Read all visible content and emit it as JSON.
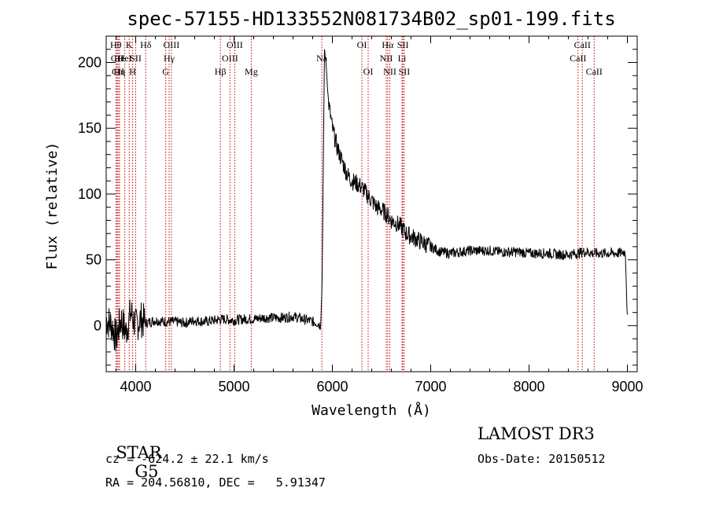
{
  "chart_data": {
    "type": "line",
    "title": "spec-57155-HD133552N081734B02_sp01-199.fits",
    "xlabel": "Wavelength (Å)",
    "ylabel": "Flux (relative)",
    "xlim": [
      3700,
      9100
    ],
    "ylim": [
      -35,
      220
    ],
    "x_ticks": [
      4000,
      5000,
      6000,
      7000,
      8000,
      9000
    ],
    "y_ticks": [
      0,
      50,
      100,
      150,
      200
    ],
    "line_color": "#000000",
    "marker_color": "#cc0000",
    "grid": false,
    "series": [
      {
        "x": [
          3700,
          3760,
          3800,
          3850,
          3900,
          3950,
          4000,
          4050,
          4100,
          4200,
          4300,
          4400,
          4500,
          4600,
          4700,
          4800,
          4900,
          5000,
          5100,
          5200,
          5300,
          5400,
          5500,
          5600,
          5700,
          5800,
          5850,
          5880,
          5895,
          5905,
          5920,
          5940,
          5960,
          5980,
          6000,
          6050,
          6100,
          6150,
          6200,
          6250,
          6300,
          6350,
          6400,
          6450,
          6500,
          6550,
          6600,
          6650,
          6700,
          6750,
          6800,
          6850,
          6900,
          6950,
          7000,
          7050,
          7100,
          7200,
          7300,
          7400,
          7500,
          7600,
          7700,
          7800,
          7900,
          8000,
          8100,
          8200,
          8300,
          8400,
          8500,
          8550,
          8600,
          8650,
          8700,
          8800,
          8900,
          8980,
          9000
        ],
        "y": [
          5,
          0,
          -10,
          5,
          -5,
          10,
          0,
          5,
          2,
          4,
          3,
          3,
          2,
          4,
          3,
          4,
          5,
          4,
          5,
          5,
          6,
          6,
          6,
          7,
          5,
          3,
          2,
          0,
          30,
          100,
          210,
          195,
          170,
          160,
          150,
          135,
          125,
          115,
          110,
          108,
          105,
          100,
          95,
          90,
          88,
          85,
          80,
          78,
          75,
          70,
          68,
          66,
          64,
          62,
          60,
          58,
          56,
          55,
          56,
          57,
          57,
          57,
          56,
          56,
          56,
          55,
          55,
          55,
          54,
          54,
          55,
          56,
          56,
          55,
          55,
          55,
          55,
          56,
          5
        ]
      }
    ],
    "line_markers": [
      {
        "name": "Hθ",
        "x": 3798,
        "row": 0
      },
      {
        "name": "CII",
        "x": 3810,
        "row": 1
      },
      {
        "name": "CII",
        "x": 3820,
        "row": 2
      },
      {
        "name": "He",
        "x": 3835,
        "row": 1
      },
      {
        "name": "Hη",
        "x": 3835,
        "row": 2
      },
      {
        "name": "K",
        "x": 3934,
        "row": 0
      },
      {
        "name": "H",
        "x": 3969,
        "row": 2
      },
      {
        "name": "HeI",
        "x": 3889,
        "row": 1
      },
      {
        "name": "SII",
        "x": 4000,
        "row": 1
      },
      {
        "name": "Hδ",
        "x": 4102,
        "row": 0
      },
      {
        "name": "OIII",
        "x": 4363,
        "row": 0
      },
      {
        "name": "Hγ",
        "x": 4340,
        "row": 1
      },
      {
        "name": "G",
        "x": 4305,
        "row": 2
      },
      {
        "name": "Hβ",
        "x": 4861,
        "row": 2
      },
      {
        "name": "OIII",
        "x": 5007,
        "row": 0
      },
      {
        "name": "OIII",
        "x": 4959,
        "row": 1
      },
      {
        "name": "Mg",
        "x": 5175,
        "row": 2
      },
      {
        "name": "Na",
        "x": 5893,
        "row": 1
      },
      {
        "name": "OI",
        "x": 6300,
        "row": 0
      },
      {
        "name": "OI",
        "x": 6364,
        "row": 2
      },
      {
        "name": "Hα",
        "x": 6563,
        "row": 0
      },
      {
        "name": "NII",
        "x": 6548,
        "row": 1
      },
      {
        "name": "NII",
        "x": 6584,
        "row": 2
      },
      {
        "name": "SII",
        "x": 6717,
        "row": 0
      },
      {
        "name": "Li",
        "x": 6708,
        "row": 1
      },
      {
        "name": "SII",
        "x": 6731,
        "row": 2
      },
      {
        "name": "CaII",
        "x": 8542,
        "row": 0
      },
      {
        "name": "CaII",
        "x": 8498,
        "row": 1
      },
      {
        "name": "CaII",
        "x": 8662,
        "row": 2
      }
    ]
  },
  "info": {
    "class": "STAR",
    "subclass": "G5",
    "survey": "LAMOST DR3",
    "cz": "cz = -624.2 ± 22.1 km/s",
    "obs_date": "Obs-Date: 20150512",
    "radec": "RA = 204.56810, DEC =   5.91347"
  }
}
